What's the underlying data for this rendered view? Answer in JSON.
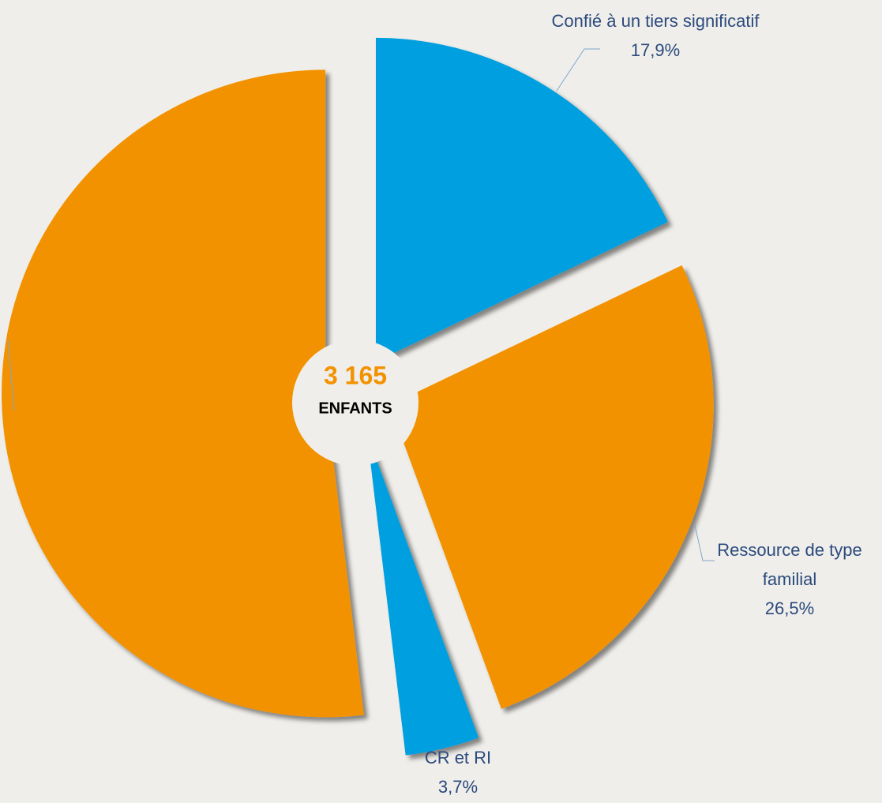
{
  "chart_data": {
    "type": "pie",
    "categories": [
      "Confié à un tiers significatif",
      "Ressource de type familial",
      "CR et RI",
      null
    ],
    "values": [
      17.9,
      26.5,
      3.7,
      51.9
    ],
    "value_labels": [
      "17,9%",
      "26,5%",
      "3,7%",
      null
    ],
    "colors": [
      "#009fe0",
      "#f39200",
      "#009fe0",
      "#f39200"
    ],
    "center_label": "3 165",
    "center_sublabel": "ENFANTS"
  }
}
